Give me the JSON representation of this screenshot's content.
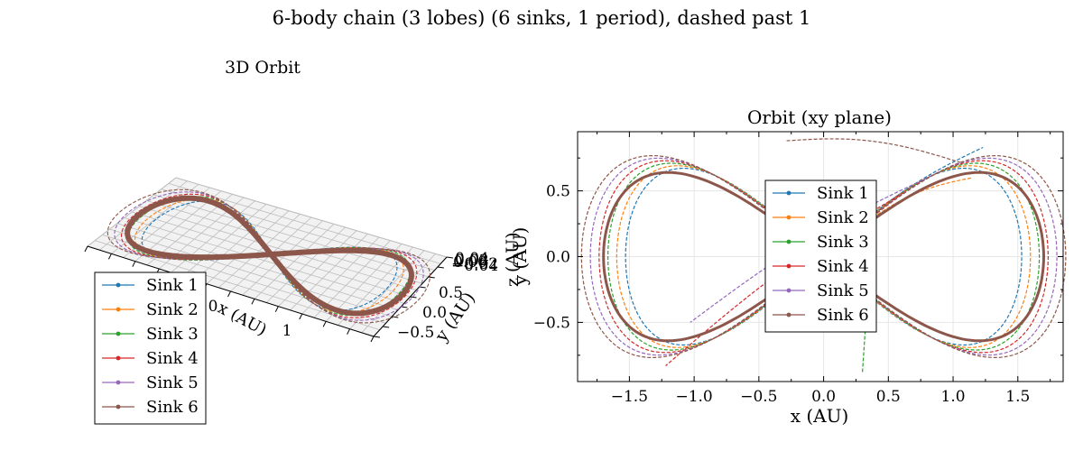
{
  "figure": {
    "suptitle": "6-body chain (3 lobes) (6 sinks, 1 period), dashed past 1"
  },
  "colors": {
    "Sink 1": "#1f77b4",
    "Sink 2": "#ff7f0e",
    "Sink 3": "#2ca02c",
    "Sink 4": "#d62728",
    "Sink 5": "#9467bd",
    "Sink 6": "#8c564b",
    "grid": "#e6e6e6",
    "pane": "#bdbdbd"
  },
  "chart_data": [
    {
      "type": "line",
      "title": "3D Orbit",
      "xlabel": "x (AU)",
      "ylabel": "y (AU)",
      "zlabel": "z (AU)",
      "x_ticks": [
        "0",
        "1"
      ],
      "y_ticks": [
        "0.5",
        "0.0",
        "−0.5"
      ],
      "z_ticks": [
        "0.04",
        "0.02",
        "0.00",
        "−0.02",
        "−0.04"
      ],
      "legend_position": "lower-left",
      "grid": true,
      "series": [
        {
          "name": "Sink 1"
        },
        {
          "name": "Sink 2"
        },
        {
          "name": "Sink 3"
        },
        {
          "name": "Sink 4"
        },
        {
          "name": "Sink 5"
        },
        {
          "name": "Sink 6"
        }
      ]
    },
    {
      "type": "line",
      "title": "Orbit (xy plane)",
      "xlabel": "x (AU)",
      "ylabel": "y (AU)",
      "xlim": [
        -1.9,
        1.85
      ],
      "ylim": [
        -0.95,
        0.95
      ],
      "x_ticks": [
        -1.5,
        -1.0,
        -0.5,
        0.0,
        0.5,
        1.0,
        1.5
      ],
      "x_tick_labels": [
        "−1.5",
        "−1.0",
        "−0.5",
        "0.0",
        "0.5",
        "1.0",
        "1.5"
      ],
      "y_ticks": [
        -0.5,
        0.0,
        0.5
      ],
      "y_tick_labels": [
        "−0.5",
        "0.0",
        "0.5"
      ],
      "legend_position": "center",
      "grid": true,
      "orbit_path": {
        "description": "figure-eight (lemniscate) shared by all sinks over one period",
        "x_extent": [
          -1.7,
          1.7
        ],
        "y_extent": [
          -0.64,
          0.64
        ]
      },
      "series": [
        {
          "name": "Sink 1",
          "dashed_end": [
            1.23,
            0.83
          ]
        },
        {
          "name": "Sink 2",
          "dashed_end": [
            1.15,
            0.6
          ]
        },
        {
          "name": "Sink 3",
          "dashed_end": [
            0.3,
            -0.88
          ]
        },
        {
          "name": "Sink 4",
          "dashed_end": [
            -1.22,
            -0.83
          ]
        },
        {
          "name": "Sink 5",
          "dashed_end": [
            -1.03,
            -0.5
          ]
        },
        {
          "name": "Sink 6",
          "dashed_end": [
            -0.3,
            0.88
          ]
        }
      ]
    }
  ]
}
